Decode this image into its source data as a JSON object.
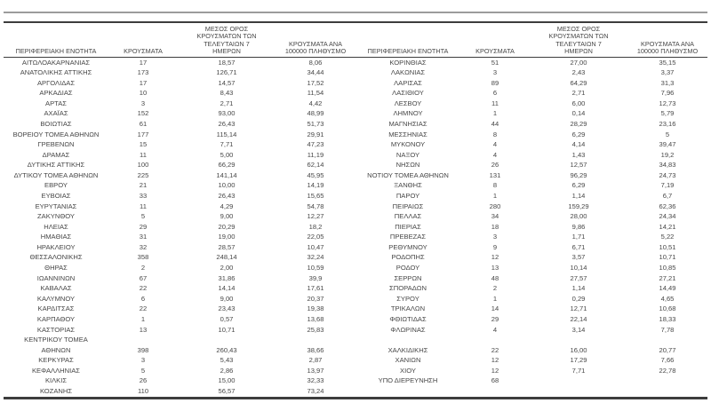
{
  "report": {
    "colors": {
      "background": "#ffffff",
      "text": "#474747",
      "rule_dark": "#3d3d3d",
      "rule_light": "#9c9c9c"
    },
    "columns": {
      "region": "ΠΕΡΙΦΕΡΕΙΑΚΗ ΕΝΟΤΗΤΑ",
      "cases": "ΚΡΟΥΣΜΑΤΑ",
      "avg_7day": "ΜΕΣΟΣ ΟΡΟΣ ΚΡΟΥΣΜΑΤΩΝ ΤΩΝ ΤΕΛΕΥΤΑΙΩΝ 7 ΗΜΕΡΩΝ",
      "per_100k": "ΚΡΟΥΣΜΑΤΑ ΑΝΑ 100000 ΠΛΗΘΥΣΜΟ"
    },
    "tables": [
      {
        "rows": [
          [
            "ΑΙΤΩΛΟΑΚΑΡΝΑΝΙΑΣ",
            "17",
            "18,57",
            "8,06"
          ],
          [
            "ΑΝΑΤΟΛΙΚΗΣ ΑΤΤΙΚΗΣ",
            "173",
            "126,71",
            "34,44"
          ],
          [
            "ΑΡΓΟΛΙΔΑΣ",
            "17",
            "14,57",
            "17,52"
          ],
          [
            "ΑΡΚΑΔΙΑΣ",
            "10",
            "8,43",
            "11,54"
          ],
          [
            "ΑΡΤΑΣ",
            "3",
            "2,71",
            "4,42"
          ],
          [
            "ΑΧΑΪΑΣ",
            "152",
            "93,00",
            "48,99"
          ],
          [
            "ΒΟΙΩΤΙΑΣ",
            "61",
            "26,43",
            "51,73"
          ],
          [
            "ΒΟΡΕΙΟΥ ΤΟΜΕΑ ΑΘΗΝΩΝ",
            "177",
            "115,14",
            "29,91"
          ],
          [
            "ΓΡΕΒΕΝΩΝ",
            "15",
            "7,71",
            "47,23"
          ],
          [
            "ΔΡΑΜΑΣ",
            "11",
            "5,00",
            "11,19"
          ],
          [
            "ΔΥΤΙΚΗΣ ΑΤΤΙΚΗΣ",
            "100",
            "66,29",
            "62,14"
          ],
          [
            "ΔΥΤΙΚΟΥ ΤΟΜΕΑ ΑΘΗΝΩΝ",
            "225",
            "141,14",
            "45,95"
          ],
          [
            "ΕΒΡΟΥ",
            "21",
            "10,00",
            "14,19"
          ],
          [
            "ΕΥΒΟΙΑΣ",
            "33",
            "26,43",
            "15,65"
          ],
          [
            "ΕΥΡΥΤΑΝΙΑΣ",
            "11",
            "4,29",
            "54,78"
          ],
          [
            "ΖΑΚΥΝΘΟΥ",
            "5",
            "9,00",
            "12,27"
          ],
          [
            "ΗΛΕΙΑΣ",
            "29",
            "20,29",
            "18,2"
          ],
          [
            "ΗΜΑΘΙΑΣ",
            "31",
            "19,00",
            "22,05"
          ],
          [
            "ΗΡΑΚΛΕΙΟΥ",
            "32",
            "28,57",
            "10,47"
          ],
          [
            "ΘΕΣΣΑΛΟΝΙΚΗΣ",
            "358",
            "248,14",
            "32,24"
          ],
          [
            "ΘΗΡΑΣ",
            "2",
            "2,00",
            "10,59"
          ],
          [
            "ΙΩΑΝΝΙΝΩΝ",
            "67",
            "31,86",
            "39,9"
          ],
          [
            "ΚΑΒΑΛΑΣ",
            "22",
            "14,14",
            "17,61"
          ],
          [
            "ΚΑΛΥΜΝΟΥ",
            "6",
            "9,00",
            "20,37"
          ],
          [
            "ΚΑΡΔΙΤΣΑΣ",
            "22",
            "23,43",
            "19,38"
          ],
          [
            "ΚΑΡΠΑΘΟΥ",
            "1",
            "0,57",
            "13,68"
          ],
          [
            "ΚΑΣΤΟΡΙΑΣ",
            "13",
            "10,71",
            "25,83"
          ],
          [
            "ΚΕΝΤΡΙΚΟΥ ΤΟΜΕΑ",
            "",
            "",
            ""
          ],
          [
            "ΑΘΗΝΩΝ",
            "398",
            "260,43",
            "38,66"
          ],
          [
            "ΚΕΡΚΥΡΑΣ",
            "3",
            "5,43",
            "2,87"
          ],
          [
            "ΚΕΦΑΛΛΗΝΙΑΣ",
            "5",
            "2,86",
            "13,97"
          ],
          [
            "ΚΙΛΚΙΣ",
            "26",
            "15,00",
            "32,33"
          ],
          [
            "ΚΟΖΑΝΗΣ",
            "110",
            "56,57",
            "73,24"
          ]
        ]
      },
      {
        "rows": [
          [
            "ΚΟΡΙΝΘΙΑΣ",
            "51",
            "27,00",
            "35,15"
          ],
          [
            "ΛΑΚΩΝΙΑΣ",
            "3",
            "2,43",
            "3,37"
          ],
          [
            "ΛΑΡΙΣΑΣ",
            "89",
            "64,29",
            "31,3"
          ],
          [
            "ΛΑΣΙΘΙΟΥ",
            "6",
            "2,71",
            "7,96"
          ],
          [
            "ΛΕΣΒΟΥ",
            "11",
            "6,00",
            "12,73"
          ],
          [
            "ΛΗΜΝΟΥ",
            "1",
            "0,14",
            "5,79"
          ],
          [
            "ΜΑΓΝΗΣΙΑΣ",
            "44",
            "28,29",
            "23,16"
          ],
          [
            "ΜΕΣΣΗΝΙΑΣ",
            "8",
            "6,29",
            "5"
          ],
          [
            "ΜΥΚΟΝΟΥ",
            "4",
            "4,14",
            "39,47"
          ],
          [
            "ΝΑΞΟΥ",
            "4",
            "1,43",
            "19,2"
          ],
          [
            "ΝΗΣΩΝ",
            "26",
            "12,57",
            "34,83"
          ],
          [
            "ΝΟΤΙΟΥ ΤΟΜΕΑ ΑΘΗΝΩΝ",
            "131",
            "96,29",
            "24,73"
          ],
          [
            "ΞΑΝΘΗΣ",
            "8",
            "6,29",
            "7,19"
          ],
          [
            "ΠΑΡΟΥ",
            "1",
            "1,14",
            "6,7"
          ],
          [
            "ΠΕΙΡΑΙΩΣ",
            "280",
            "159,29",
            "62,36"
          ],
          [
            "ΠΕΛΛΑΣ",
            "34",
            "28,00",
            "24,34"
          ],
          [
            "ΠΙΕΡΙΑΣ",
            "18",
            "9,86",
            "14,21"
          ],
          [
            "ΠΡΕΒΕΖΑΣ",
            "3",
            "1,71",
            "5,22"
          ],
          [
            "ΡΕΘΥΜΝΟΥ",
            "9",
            "6,71",
            "10,51"
          ],
          [
            "ΡΟΔΟΠΗΣ",
            "12",
            "3,57",
            "10,71"
          ],
          [
            "ΡΟΔΟΥ",
            "13",
            "10,14",
            "10,85"
          ],
          [
            "ΣΕΡΡΩΝ",
            "48",
            "27,57",
            "27,21"
          ],
          [
            "ΣΠΟΡΑΔΩΝ",
            "2",
            "1,14",
            "14,49"
          ],
          [
            "ΣΥΡΟΥ",
            "1",
            "0,29",
            "4,65"
          ],
          [
            "ΤΡΙΚΑΛΩΝ",
            "14",
            "12,71",
            "10,68"
          ],
          [
            "ΦΘΙΩΤΙΔΑΣ",
            "29",
            "22,14",
            "18,33"
          ],
          [
            "ΦΛΩΡΙΝΑΣ",
            "4",
            "3,14",
            "7,78"
          ],
          [
            "",
            "",
            "",
            ""
          ],
          [
            "ΧΑΛΚΙΔΙΚΗΣ",
            "22",
            "16,00",
            "20,77"
          ],
          [
            "ΧΑΝΙΩΝ",
            "12",
            "17,29",
            "7,66"
          ],
          [
            "ΧΙΟΥ",
            "12",
            "7,71",
            "22,78"
          ],
          [
            "ΥΠΟ ΔΙΕΡΕΥΝΗΣΗ",
            "68",
            "",
            ""
          ],
          [
            "",
            "",
            "",
            ""
          ]
        ]
      }
    ]
  }
}
